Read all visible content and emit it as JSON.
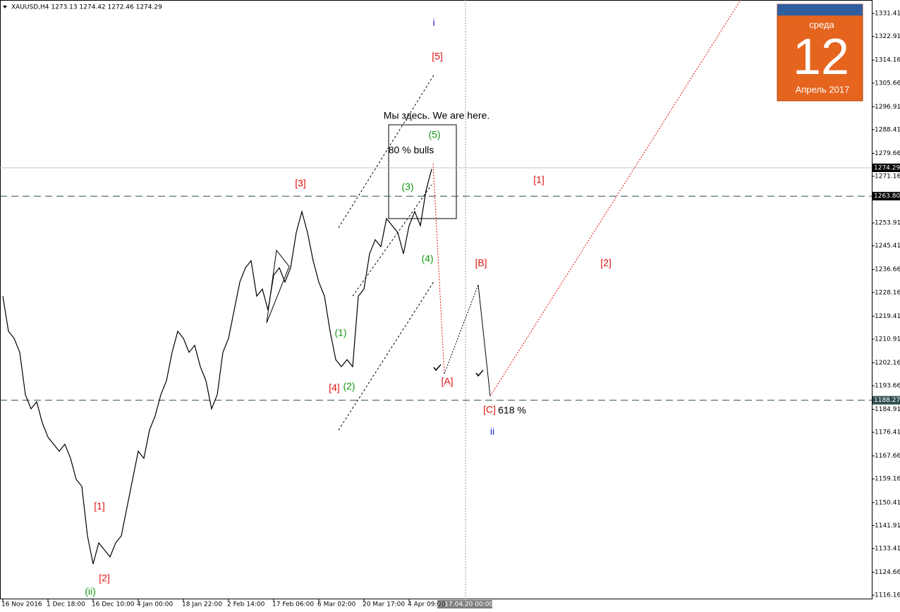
{
  "chart_data": {
    "type": "line",
    "title": "XAUUSD,H4  1273.13 1274.42 1272.46 1274.29",
    "categories": [
      "16 Nov 2016",
      null,
      null,
      null,
      null,
      null,
      null,
      null,
      "1 Dec 18:00",
      null,
      null,
      null,
      null,
      null,
      null,
      null,
      "16 Dec 10:00",
      null,
      null,
      null,
      null,
      null,
      null,
      null,
      "4 Jan 00:00",
      null,
      null,
      null,
      null,
      null,
      null,
      null,
      "18 Jan 22:00",
      null,
      null,
      null,
      null,
      null,
      null,
      null,
      "2 Feb 14:00",
      null,
      null,
      null,
      null,
      null,
      null,
      null,
      "17 Feb 06:00",
      null,
      null,
      null,
      null,
      null,
      null,
      null,
      "6 Mar 02:00",
      null,
      null,
      null,
      null,
      null,
      null,
      null,
      "20 Mar 17:00",
      null,
      null,
      null,
      null,
      null,
      null,
      null,
      "4 Apr 09:00",
      null,
      null,
      null,
      null
    ],
    "series": [
      {
        "name": "XAUUSD,H4",
        "color": "#000000",
        "values": [
          1226.8,
          1213.8,
          1211.2,
          1206,
          1190.3,
          1185.1,
          1187.7,
          1179.9,
          1174.6,
          1172,
          1169.4,
          1172,
          1166.8,
          1159,
          1156.4,
          1138.1,
          1127.7,
          1135.5,
          1132.9,
          1130.3,
          1135.5,
          1138.1,
          1148.6,
          1159,
          1169.4,
          1166.8,
          1177.3,
          1182.5,
          1190.3,
          1195.5,
          1206,
          1213.8,
          1211.2,
          1206,
          1208.6,
          1200.7,
          1195.5,
          1185.1,
          1190.3,
          1206,
          1211.2,
          1221.6,
          1232,
          1237.3,
          1239.9,
          1226.8,
          1229.4,
          1221.6,
          1234.6,
          1237.3,
          1232,
          1237.3,
          1250.3,
          1258.1,
          1250.3,
          1239.9,
          1232,
          1226.8,
          1213.8,
          1203.3,
          1200.7,
          1203.3,
          1200.7,
          1226.8,
          1229.4,
          1242.5,
          1247.7,
          1245.1,
          1255.5,
          1252.9,
          1250.3,
          1242.5,
          1252.9,
          1258.1,
          1252.9,
          1265.9,
          1273.8
        ]
      }
    ],
    "ylim": [
      1114.6,
      1336.4
    ],
    "yticks": [
      1331.41,
      1322.91,
      1314.16,
      1305.66,
      1296.91,
      1288.41,
      1279.66,
      1271.16,
      1253.91,
      1245.41,
      1236.66,
      1228.16,
      1219.41,
      1210.91,
      1202.16,
      1193.66,
      1184.91,
      1176.41,
      1167.66,
      1159.16,
      1150.41,
      1141.91,
      1133.41,
      1124.66,
      1116.16
    ],
    "price_lines": [
      1274.29,
      {
        "value": 1263.8,
        "label": "1263.80"
      },
      1188.27
    ],
    "cursor_label": "2017.04.20 00:00",
    "annotations": [
      {
        "text": "i",
        "color": "#1a1adb"
      },
      {
        "text": "[5]",
        "color": "#e01010"
      },
      {
        "text": "Мы здесь. We are here.",
        "color": "#000000"
      },
      {
        "text": "(5)",
        "color": "#119911"
      },
      {
        "text": "80 % bulls",
        "color": "#000000"
      },
      {
        "text": "[3]",
        "color": "#e01010"
      },
      {
        "text": "(3)",
        "color": "#119911"
      },
      {
        "text": "[1]",
        "color": "#e01010"
      },
      {
        "text": "(4)",
        "color": "#119911"
      },
      {
        "text": "[B]",
        "color": "#e01010"
      },
      {
        "text": "[2]",
        "color": "#e01010"
      },
      {
        "text": "(1)",
        "color": "#119911"
      },
      {
        "text": "[A]",
        "color": "#e01010"
      },
      {
        "text": "[4]",
        "color": "#e01010"
      },
      {
        "text": "(2)",
        "color": "#119911"
      },
      {
        "text": "[C]",
        "color": "#e01010"
      },
      {
        "text": "618 %",
        "color": "#000000"
      },
      {
        "text": "ii",
        "color": "#1a1adb"
      },
      {
        "text": "[1]",
        "color": "#e01010"
      },
      {
        "text": "[2]",
        "color": "#e01010"
      },
      {
        "text": "(ii)",
        "color": "#119911"
      }
    ],
    "calendar": {
      "weekday": "среда",
      "day": "12",
      "month": "Апрель 2017"
    }
  }
}
